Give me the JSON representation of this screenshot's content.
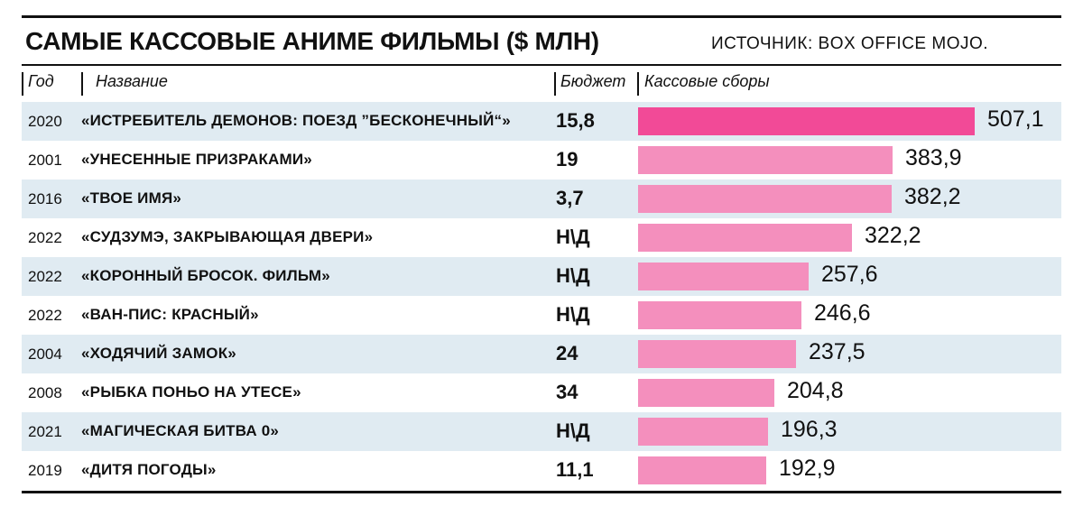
{
  "header": {
    "title": "САМЫЕ КАССОВЫЕ АНИМЕ ФИЛЬМЫ ($ МЛН)",
    "source": "ИСТОЧНИК: BOX OFFICE MOJO."
  },
  "columns": {
    "year": "Год",
    "name": "Название",
    "budget": "Бюджет",
    "gross": "Кассовые сборы"
  },
  "colors": {
    "highlight": "#f24a97",
    "bar": "#f48fbd",
    "shade": "#e0ebf2"
  },
  "chart_data": {
    "type": "bar",
    "orientation": "horizontal",
    "title": "САМЫЕ КАССОВЫЕ АНИМЕ ФИЛЬМЫ ($ МЛН)",
    "source": "ИСТОЧНИК: BOX OFFICE MOJO.",
    "xlim": [
      0,
      507.1
    ],
    "rows": [
      {
        "year": "2020",
        "name": "«ИСТРЕБИТЕЛЬ ДЕМОНОВ: ПОЕЗД ”БЕСКОНЕЧНЫЙ“»",
        "budget": "15,8",
        "value": 507.1,
        "label": "507,1",
        "highlight": true
      },
      {
        "year": "2001",
        "name": "«УНЕСЕННЫЕ ПРИЗРАКАМИ»",
        "budget": "19",
        "value": 383.9,
        "label": "383,9"
      },
      {
        "year": "2016",
        "name": "«ТВОЕ ИМЯ»",
        "budget": "3,7",
        "value": 382.2,
        "label": "382,2"
      },
      {
        "year": "2022",
        "name": "«СУДЗУМЭ, ЗАКРЫВАЮЩАЯ ДВЕРИ»",
        "budget": "Н\\Д",
        "value": 322.2,
        "label": "322,2"
      },
      {
        "year": "2022",
        "name": "«КОРОННЫЙ БРОСОК. ФИЛЬМ»",
        "budget": "Н\\Д",
        "value": 257.6,
        "label": "257,6"
      },
      {
        "year": "2022",
        "name": "«ВАН-ПИС: КРАСНЫЙ»",
        "budget": "Н\\Д",
        "value": 246.6,
        "label": "246,6"
      },
      {
        "year": "2004",
        "name": "«ХОДЯЧИЙ ЗАМОК»",
        "budget": "24",
        "value": 237.5,
        "label": "237,5"
      },
      {
        "year": "2008",
        "name": "«РЫБКА ПОНЬО НА УТЕСЕ»",
        "budget": "34",
        "value": 204.8,
        "label": "204,8"
      },
      {
        "year": "2021",
        "name": "«МАГИЧЕСКАЯ БИТВА 0»",
        "budget": "Н\\Д",
        "value": 196.3,
        "label": "196,3"
      },
      {
        "year": "2019",
        "name": "«ДИТЯ ПОГОДЫ»",
        "budget": "11,1",
        "value": 192.9,
        "label": "192,9"
      }
    ]
  }
}
